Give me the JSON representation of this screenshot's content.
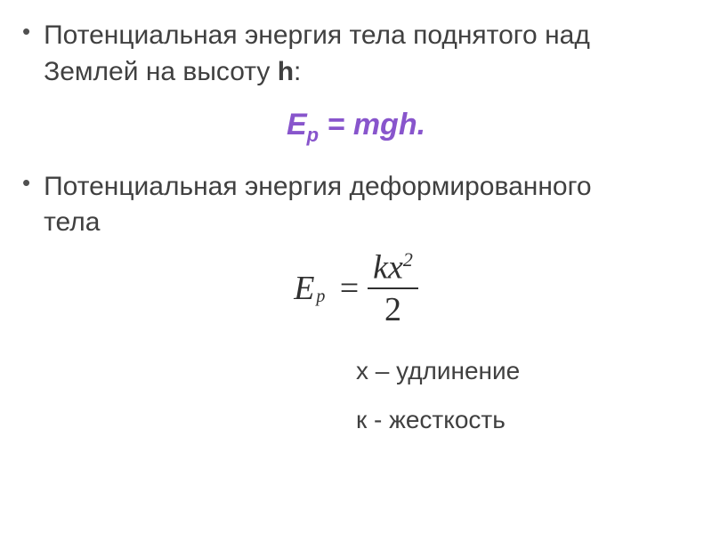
{
  "bullets": {
    "item1_line1": "Потенциальная энергия тела поднятого над",
    "item1_line2_prefix": "Землей на высоту ",
    "item1_var": "h",
    "item1_suffix": ":",
    "item2_prefix": "Потенциальная энергия деформированного",
    "item2_line2": "тела"
  },
  "formula_highlight": {
    "symbol": "E",
    "sub": "p",
    "equals": " = ",
    "rhs": "mgh",
    "period": "."
  },
  "formula_fraction": {
    "symbol": "E",
    "sub": "p",
    "equals": "=",
    "numerator_k": "k",
    "numerator_x": "x",
    "numerator_exp": "2",
    "denominator": "2"
  },
  "definitions": {
    "x_def": "х – удлинение",
    "k_def": "к - жесткость"
  },
  "colors": {
    "text": "#404040",
    "highlight": "#8855cc",
    "formula": "#303030",
    "background": "#ffffff"
  }
}
